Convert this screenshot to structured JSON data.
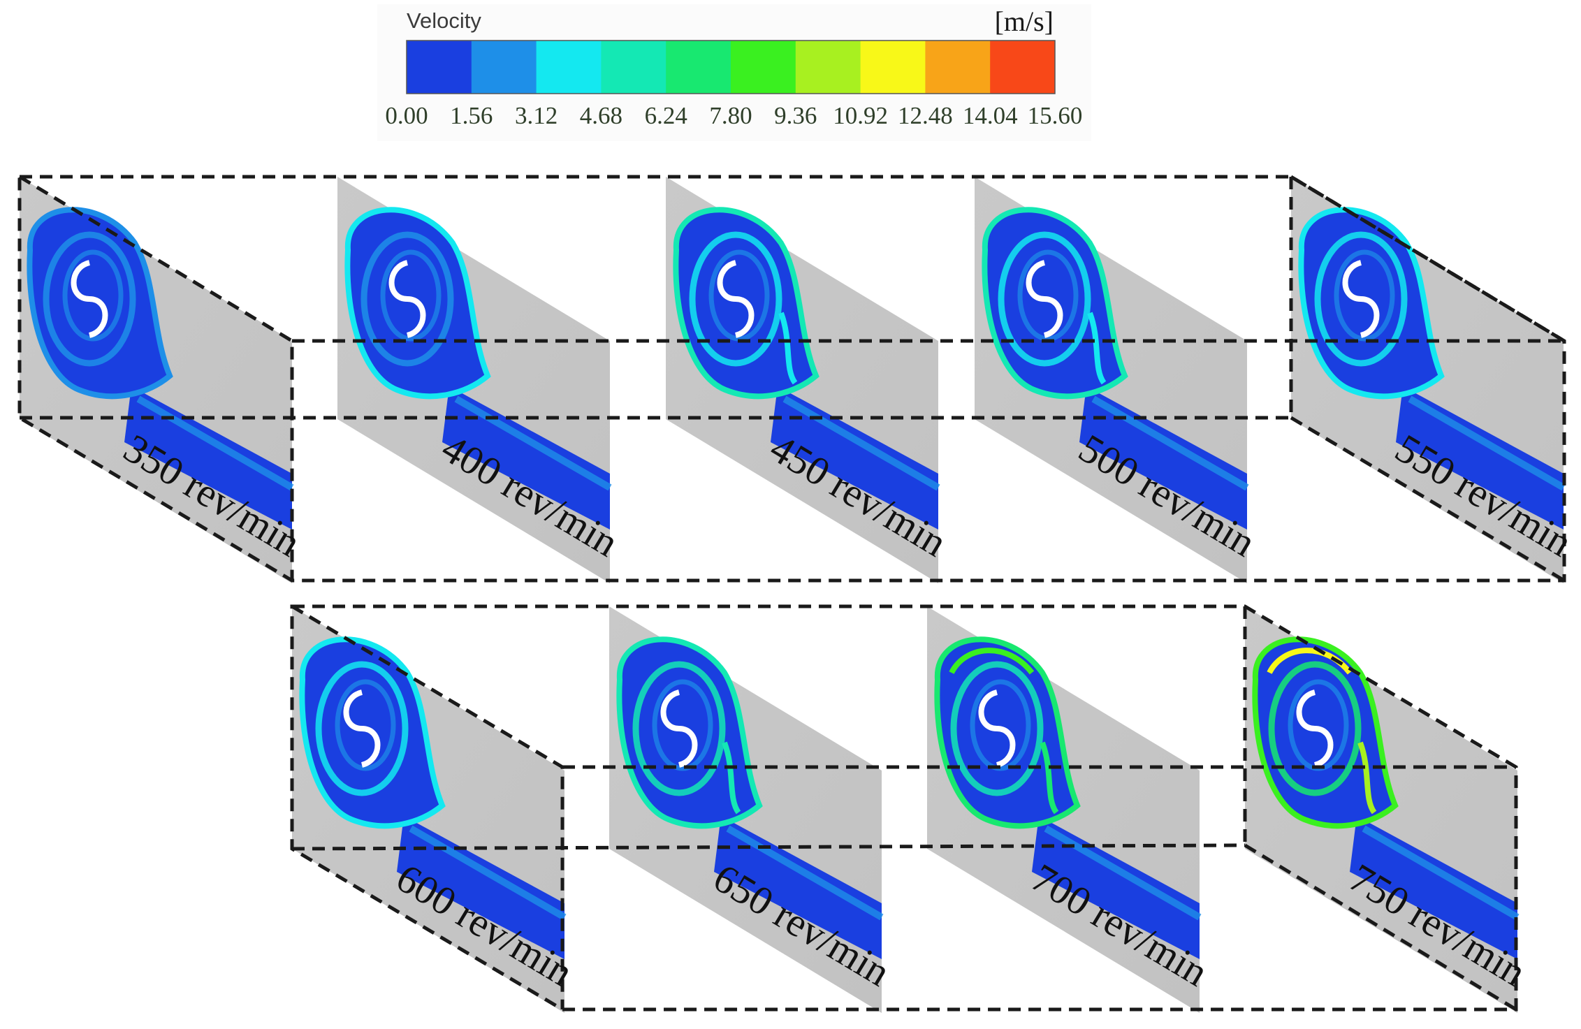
{
  "legend": {
    "title": "Velocity",
    "unit": "[m/s]",
    "ticks": [
      "0.00",
      "1.56",
      "3.12",
      "4.68",
      "6.24",
      "7.80",
      "9.36",
      "10.92",
      "12.48",
      "14.04",
      "15.60"
    ],
    "colors": [
      "#1a3fe0",
      "#1e8fe8",
      "#14e8f0",
      "#14e8b4",
      "#18e870",
      "#3af020",
      "#a8f020",
      "#f8f818",
      "#f8a418",
      "#f84818"
    ]
  },
  "panels": [
    {
      "label": "350 rev/min",
      "intensity": 0.05
    },
    {
      "label": "400 rev/min",
      "intensity": 0.15
    },
    {
      "label": "450 rev/min",
      "intensity": 0.35
    },
    {
      "label": "500 rev/min",
      "intensity": 0.4
    },
    {
      "label": "550 rev/min",
      "intensity": 0.25
    },
    {
      "label": "600 rev/min",
      "intensity": 0.3
    },
    {
      "label": "650 rev/min",
      "intensity": 0.55
    },
    {
      "label": "700 rev/min",
      "intensity": 0.7
    },
    {
      "label": "750 rev/min",
      "intensity": 0.9
    }
  ]
}
